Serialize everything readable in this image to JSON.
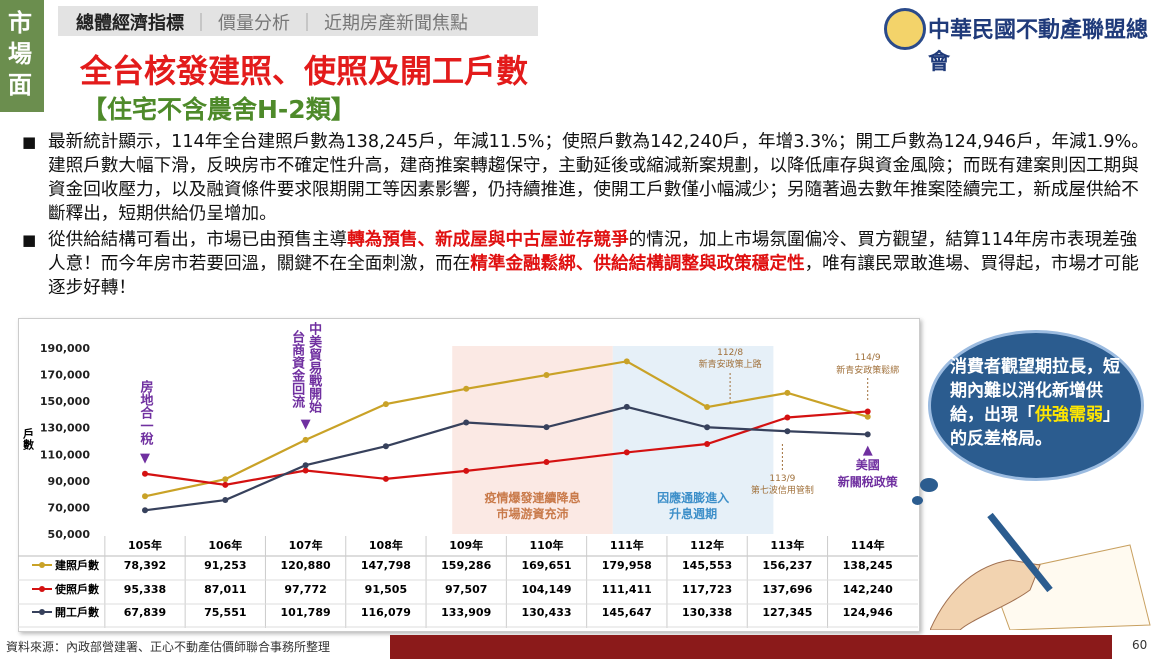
{
  "side_tab": "市場面",
  "nav": {
    "items": [
      "總體經濟指標",
      "價量分析",
      "近期房產新聞焦點"
    ]
  },
  "logo": "中華民國不動產聯盟總會",
  "title": "全台核發建照、使照及開工戶數",
  "subtitle": "【住宅不含農舍H-2類】",
  "bullets": [
    {
      "parts": [
        {
          "text": "最新統計顯示，114年全台建照戶數為138,245戶，年減11.5%；使照戶數為142,240戶，年增3.3%；開工戶數為124,946戶，年減1.9%。建照戶數大幅下滑，反映房市不確定性升高，建商推案轉趨保守，主動延後或縮減新案規劃，以降低庫存與資金風險；而既有建案則因工期與資金回收壓力，以及融資條件要求限期開工等因素影響，仍持續推進，使開工戶數僅小幅減少；另隨著過去數年推案陸續完工，新成屋供給不斷釋出，短期供給仍呈增加。",
          "highlight": false
        }
      ]
    },
    {
      "parts": [
        {
          "text": "從供給結構可看出，市場已由預售主導",
          "highlight": false
        },
        {
          "text": "轉為預售、新成屋與中古屋並存競爭",
          "highlight": true
        },
        {
          "text": "的情況，加上市場氛圍偏冷、買方觀望，結算114年房市表現差強人意！而今年房市若要回溫，關鍵不在全面刺激，而在",
          "highlight": false
        },
        {
          "text": "精準金融鬆綁、供給結構調整與政策穩定性",
          "highlight": true
        },
        {
          "text": "，唯有讓民眾敢進場、買得起，市場才可能逐步好轉！",
          "highlight": false
        }
      ]
    }
  ],
  "callout": {
    "parts": [
      {
        "text": "消費者觀望期拉長，短期內難以消化新增供給，出現「",
        "highlight": false
      },
      {
        "text": "供強需弱",
        "highlight": true
      },
      {
        "text": "」的反差格局。",
        "highlight": false
      }
    ]
  },
  "chart_data": {
    "type": "line",
    "y_label": "戶數",
    "categories": [
      "105年",
      "106年",
      "107年",
      "108年",
      "109年",
      "110年",
      "111年",
      "112年",
      "113年",
      "114年"
    ],
    "series": [
      {
        "name": "建照戶數",
        "color": "#c9a227",
        "values": [
          78392,
          91253,
          120880,
          147798,
          159286,
          169651,
          179958,
          145553,
          156237,
          138245
        ],
        "value_labels": [
          "78,392",
          "91,253",
          "120,880",
          "147,798",
          "159,286",
          "169,651",
          "179,958",
          "145,553",
          "156,237",
          "138,245"
        ]
      },
      {
        "name": "使照戶數",
        "color": "#d41111",
        "values": [
          95338,
          87011,
          97772,
          91505,
          97507,
          104149,
          111411,
          117723,
          137696,
          142240
        ],
        "value_labels": [
          "95,338",
          "87,011",
          "97,772",
          "91,505",
          "97,507",
          "104,149",
          "111,411",
          "117,723",
          "137,696",
          "142,240"
        ]
      },
      {
        "name": "開工戶數",
        "color": "#37415c",
        "values": [
          67839,
          75551,
          101789,
          116079,
          133909,
          130433,
          145647,
          130338,
          127345,
          124946
        ],
        "value_labels": [
          "67,839",
          "75,551",
          "101,789",
          "116,079",
          "133,909",
          "130,433",
          "145,647",
          "130,338",
          "127,345",
          "124,946"
        ]
      }
    ],
    "ylim": [
      50000,
      190000
    ],
    "yticks": [
      {
        "value": 50000,
        "label": "50,000"
      },
      {
        "value": 70000,
        "label": "70,000"
      },
      {
        "value": 90000,
        "label": "90,000"
      },
      {
        "value": 110000,
        "label": "110,000"
      },
      {
        "value": 130000,
        "label": "130,000"
      },
      {
        "value": 150000,
        "label": "150,000"
      },
      {
        "value": 170000,
        "label": "170,000"
      },
      {
        "value": 190000,
        "label": "190,000"
      }
    ],
    "periods": [
      {
        "lines": [
          "疫情爆發連續降息",
          "市場游資充沛"
        ],
        "color": "#fbe9e4",
        "text_color": "#c97a4a"
      },
      {
        "lines": [
          "因應通膨進入",
          "升息週期"
        ],
        "color": "#e6f0f8",
        "text_color": "#3d8fc9"
      }
    ],
    "annotations": [
      {
        "lines": [
          "房地合一稅"
        ],
        "color": "#7030a0"
      },
      {
        "lines": [
          "中美貿易戰開始",
          "台商資金回流"
        ],
        "color": "#7030a0"
      },
      {
        "lines": [
          "112/8",
          "新青安政策上路"
        ],
        "color": "#a0703a"
      },
      {
        "lines": [
          "113/9",
          "第七波信用管制"
        ],
        "color": "#a0703a"
      },
      {
        "lines": [
          "114/9",
          "新青安政策鬆綁"
        ],
        "color": "#a0703a"
      },
      {
        "lines": [
          "美國",
          "新關稅政策"
        ],
        "color": "#7030a0"
      }
    ]
  },
  "footer": {
    "source": "資料來源：內政部營建署、正心不動產估價師聯合事務所整理",
    "page": "60"
  }
}
